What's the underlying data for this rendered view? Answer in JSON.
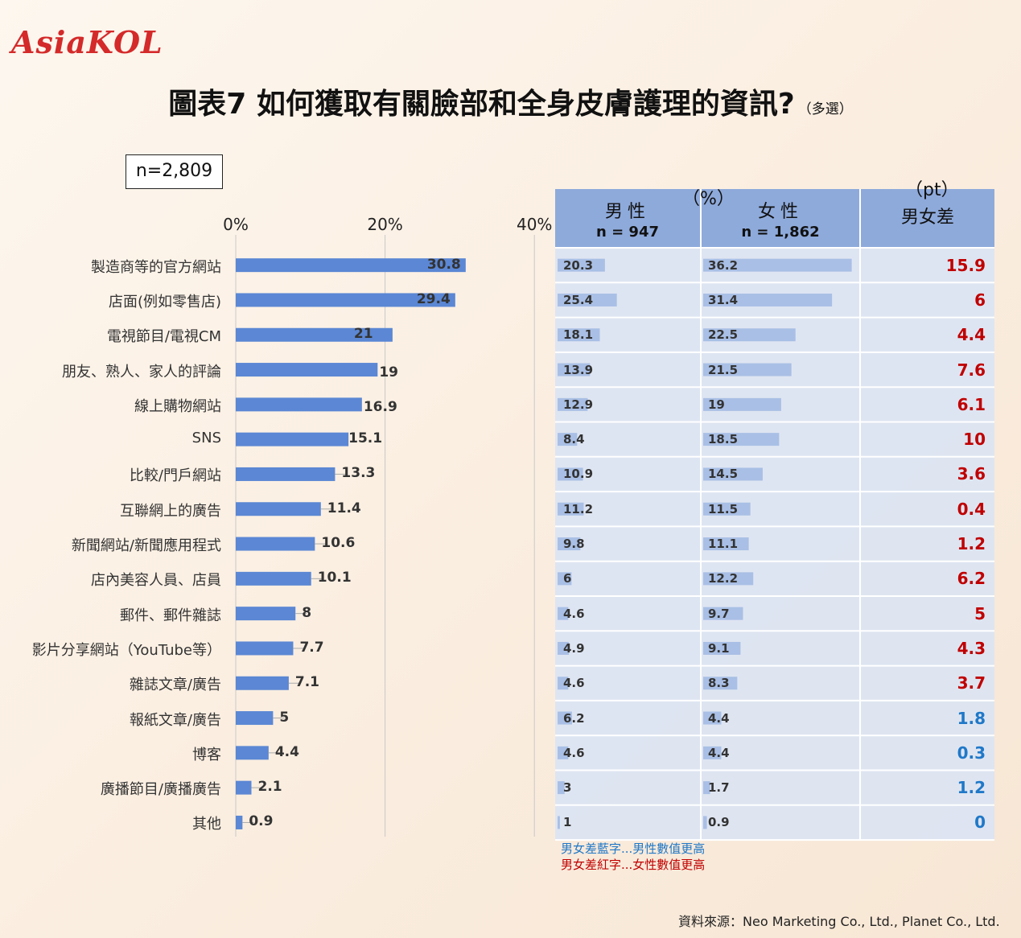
{
  "brand": {
    "logo_text": "AsiaKOL"
  },
  "title": {
    "main": "圖表7 如何獲取有關臉部和全身皮膚護理的資訊?",
    "sub": "（多選）"
  },
  "sample": "n=2,809",
  "chart_data": {
    "type": "bar",
    "orientation": "horizontal",
    "x_ticks": [
      "0%",
      "20%",
      "40%"
    ],
    "xlim": [
      0,
      40
    ],
    "categories": [
      "製造商等的官方網站",
      "店面(例如零售店)",
      "電視節目/電視CM",
      "朋友、熟人、家人的評論",
      "線上購物網站",
      "SNS",
      "比較/門戶網站",
      "互聯網上的廣告",
      "新聞網站/新聞應用程式",
      "店內美容人員、店員",
      "郵件、郵件雜誌",
      "影片分享網站（YouTube等）",
      "雜誌文章/廣告",
      "報紙文章/廣告",
      "博客",
      "廣播節目/廣播廣告",
      "其他"
    ],
    "values": [
      30.8,
      29.4,
      21,
      19,
      16.9,
      15.1,
      13.3,
      11.4,
      10.6,
      10.1,
      8,
      7.7,
      7.1,
      5,
      4.4,
      2.1,
      0.9
    ],
    "value_labels": [
      "30.8",
      "29.4",
      "21",
      "19",
      "16.9",
      "15.1",
      "13.3",
      "11.4",
      "10.6",
      "10.1",
      "8",
      "7.7",
      "7.1",
      "5",
      "4.4",
      "2.1",
      "0.9"
    ],
    "bar_color": "#5b87d4"
  },
  "table": {
    "unit_pct": "（%）",
    "unit_pt": "（pt）",
    "male_header": "男性",
    "male_n": "n = 947",
    "female_header": "女性",
    "female_n": "n = 1,862",
    "diff_header": "男女差",
    "male": [
      20.3,
      25.4,
      18.1,
      13.9,
      12.9,
      8.4,
      10.9,
      11.2,
      9.8,
      6,
      4.6,
      4.9,
      4.6,
      6.2,
      4.6,
      3,
      1
    ],
    "male_labels": [
      "20.3",
      "25.4",
      "18.1",
      "13.9",
      "12.9",
      "8.4",
      "10.9",
      "11.2",
      "9.8",
      "6",
      "4.6",
      "4.9",
      "4.6",
      "6.2",
      "4.6",
      "3",
      "1"
    ],
    "female": [
      36.2,
      31.4,
      22.5,
      21.5,
      19,
      18.5,
      14.5,
      11.5,
      11.1,
      12.2,
      9.7,
      9.1,
      8.3,
      4.4,
      4.4,
      1.7,
      0.9
    ],
    "female_labels": [
      "36.2",
      "31.4",
      "22.5",
      "21.5",
      "19",
      "18.5",
      "14.5",
      "11.5",
      "11.1",
      "12.2",
      "9.7",
      "9.1",
      "8.3",
      "4.4",
      "4.4",
      "1.7",
      "0.9"
    ],
    "diff_labels": [
      "15.9",
      "6",
      "4.4",
      "7.6",
      "6.1",
      "10",
      "3.6",
      "0.4",
      "1.2",
      "6.2",
      "5",
      "4.3",
      "3.7",
      "1.8",
      "0.3",
      "1.2",
      "0"
    ],
    "diff_higher": [
      "female",
      "female",
      "female",
      "female",
      "female",
      "female",
      "female",
      "female",
      "female",
      "female",
      "female",
      "female",
      "female",
      "male",
      "male",
      "male",
      "male"
    ],
    "colors": {
      "male_higher": "#1f78c8",
      "female_higher": "#c00000",
      "header_bg": "#8eaadb",
      "row_bg": "#dbe4f3",
      "mini_bar": "#a9bfe5"
    }
  },
  "notes": {
    "blue_note": "男女差藍字...男性數值更高",
    "red_note": "男女差紅字...女性數值更高"
  },
  "source": "資料來源：Neo Marketing Co., Ltd., Planet Co., Ltd."
}
